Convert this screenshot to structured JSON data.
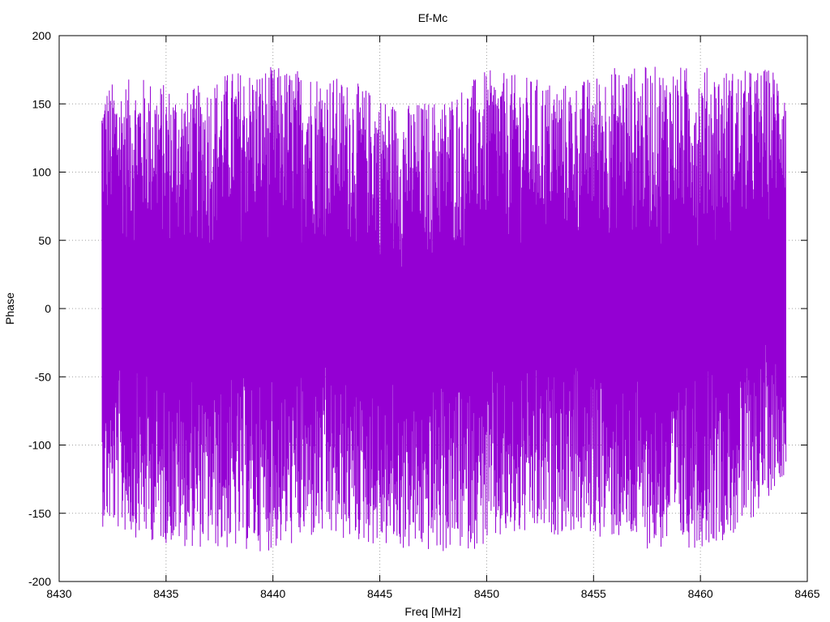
{
  "chart_data": {
    "type": "line",
    "title": "Ef-Mc",
    "xlabel": "Freq [MHz]",
    "ylabel": "Phase",
    "xlim": [
      8430,
      8465
    ],
    "ylim": [
      -200,
      200
    ],
    "xticks": [
      8430,
      8435,
      8440,
      8445,
      8450,
      8455,
      8460,
      8465
    ],
    "yticks": [
      -200,
      -150,
      -100,
      -50,
      0,
      50,
      100,
      150,
      200
    ],
    "grid": true,
    "legend": "none",
    "series": [
      {
        "color": "#9400d3",
        "x_range": [
          8432,
          8464
        ],
        "num_points": 2400,
        "y_range": [
          -180,
          180
        ],
        "pattern": "rapidly oscillating phase (wrapping between -180 and 180), envelope midpoint low near 8447-8448 MHz and high near 8458-8459 MHz",
        "envelope": [
          {
            "x": 8432.0,
            "lo": -160,
            "hi": 165
          },
          {
            "x": 8434.0,
            "lo": -170,
            "hi": 170
          },
          {
            "x": 8436.0,
            "lo": -175,
            "hi": 160
          },
          {
            "x": 8438.0,
            "lo": -178,
            "hi": 175
          },
          {
            "x": 8440.0,
            "lo": -178,
            "hi": 178
          },
          {
            "x": 8442.0,
            "lo": -170,
            "hi": 175
          },
          {
            "x": 8444.0,
            "lo": -172,
            "hi": 165
          },
          {
            "x": 8446.0,
            "lo": -178,
            "hi": 150
          },
          {
            "x": 8448.0,
            "lo": -180,
            "hi": 155
          },
          {
            "x": 8450.0,
            "lo": -175,
            "hi": 175
          },
          {
            "x": 8452.0,
            "lo": -168,
            "hi": 170
          },
          {
            "x": 8454.0,
            "lo": -165,
            "hi": 165
          },
          {
            "x": 8456.0,
            "lo": -170,
            "hi": 178
          },
          {
            "x": 8458.0,
            "lo": -178,
            "hi": 178
          },
          {
            "x": 8460.0,
            "lo": -175,
            "hi": 178
          },
          {
            "x": 8462.0,
            "lo": -165,
            "hi": 175
          },
          {
            "x": 8464.0,
            "lo": -120,
            "hi": 178
          }
        ]
      }
    ]
  }
}
